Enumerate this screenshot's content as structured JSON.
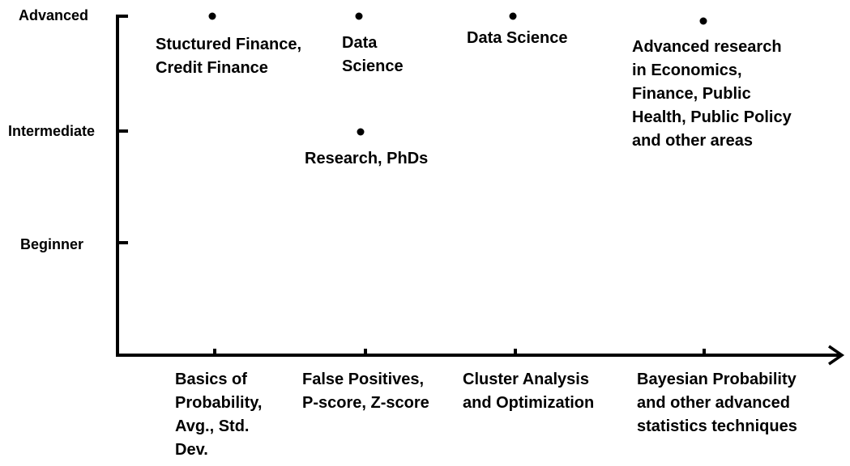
{
  "chart_data": {
    "type": "scatter",
    "y_levels": [
      "Beginner",
      "Intermediate",
      "Advanced"
    ],
    "x_categories": [
      "Basics of Probability, Avg., Std. Dev.",
      "False Positives, P-score, Z-score",
      "Cluster Analysis and Optimization",
      "Bayesian Probability and other advanced statistics techniques"
    ],
    "points": [
      {
        "x": "Basics of Probability, Avg., Std. Dev.",
        "y": "Advanced",
        "label": "Stuctured Finance, Credit Finance"
      },
      {
        "x": "False Positives, P-score, Z-score",
        "y": "Advanced",
        "label": "Data Science"
      },
      {
        "x": "False Positives, P-score, Z-score",
        "y": "Intermediate",
        "label": "Research, PhDs"
      },
      {
        "x": "Cluster Analysis and Optimization",
        "y": "Advanced",
        "label": "Data Science"
      },
      {
        "x": "Bayesian Probability and other advanced statistics techniques",
        "y": "Advanced",
        "label": "Advanced research in Economics, Finance, Public Health, Public Policy and other areas"
      }
    ],
    "grid": false,
    "legend": "none"
  }
}
